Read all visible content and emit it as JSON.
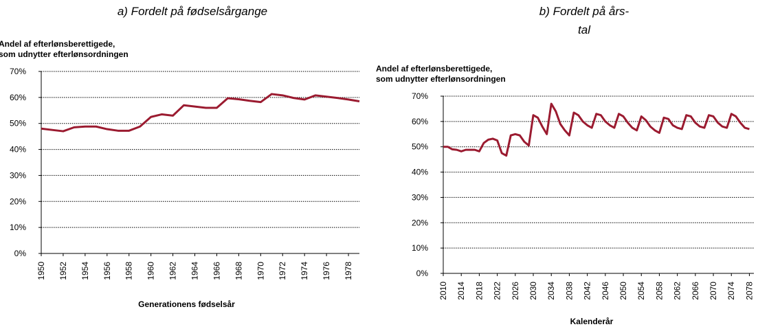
{
  "chart_data": [
    {
      "type": "line",
      "title": [
        "a) Fordelt på fødselsårgange"
      ],
      "ylabel": [
        "Andel af efterlønsberettigede,",
        "som udnytter efterlønsordningen"
      ],
      "xlabel": "Generationens fødselsår",
      "x": [
        1950,
        1951,
        1952,
        1953,
        1954,
        1955,
        1956,
        1957,
        1958,
        1959,
        1960,
        1961,
        1962,
        1963,
        1964,
        1965,
        1966,
        1967,
        1968,
        1969,
        1970,
        1971,
        1972,
        1973,
        1974,
        1975,
        1976,
        1977,
        1978,
        1979
      ],
      "series": [
        {
          "color": "#9b1b30",
          "values": [
            48,
            47.5,
            47,
            48.5,
            48.8,
            48.8,
            47.8,
            47.2,
            47.2,
            48.8,
            52.5,
            53.5,
            53,
            57,
            56.5,
            56,
            56,
            59.7,
            59.3,
            58.7,
            58.2,
            61.3,
            60.8,
            59.8,
            59.2,
            60.8,
            60.3,
            59.8,
            59.2,
            58.5
          ]
        }
      ],
      "xlim": [
        1950,
        1979
      ],
      "xticks": [
        1950,
        1952,
        1954,
        1956,
        1958,
        1960,
        1962,
        1964,
        1966,
        1968,
        1970,
        1972,
        1974,
        1976,
        1978
      ],
      "ylim": [
        0,
        70
      ],
      "yticks": [
        {
          "value": 0,
          "label": "0%"
        },
        {
          "value": 10,
          "label": "10%"
        },
        {
          "value": 20,
          "label": "20%"
        },
        {
          "value": 30,
          "label": "30%"
        },
        {
          "value": 40,
          "label": "40%"
        },
        {
          "value": 50,
          "label": "50%"
        },
        {
          "value": 60,
          "label": "60%"
        },
        {
          "value": 70,
          "label": "70%"
        }
      ],
      "grid": true
    },
    {
      "type": "line",
      "title": [
        "b) Fordelt på års-",
        "tal"
      ],
      "ylabel": [
        "Andel af efterlønsberettigede,",
        "som udnytter efterlønsordningen"
      ],
      "xlabel": "Kalenderår",
      "x": [
        2010,
        2011,
        2012,
        2013,
        2014,
        2015,
        2016,
        2017,
        2018,
        2019,
        2020,
        2021,
        2022,
        2023,
        2024,
        2025,
        2026,
        2027,
        2028,
        2029,
        2030,
        2031,
        2032,
        2033,
        2034,
        2035,
        2036,
        2037,
        2038,
        2039,
        2040,
        2041,
        2042,
        2043,
        2044,
        2045,
        2046,
        2047,
        2048,
        2049,
        2050,
        2051,
        2052,
        2053,
        2054,
        2055,
        2056,
        2057,
        2058,
        2059,
        2060,
        2061,
        2062,
        2063,
        2064,
        2065,
        2066,
        2067,
        2068,
        2069,
        2070,
        2071,
        2072,
        2073,
        2074,
        2075,
        2076,
        2077,
        2078
      ],
      "series": [
        {
          "color": "#9b1b30",
          "values": [
            50,
            50,
            49,
            48.8,
            48.2,
            48.8,
            48.8,
            48.8,
            48.2,
            51.5,
            52.8,
            53.2,
            52.5,
            47.5,
            46.5,
            54.5,
            55,
            54.5,
            52,
            50.5,
            62.5,
            61.5,
            58,
            55,
            67,
            64,
            59,
            56.5,
            54.5,
            63.5,
            62.5,
            60,
            58.5,
            57.5,
            63,
            62.5,
            60,
            58.5,
            57.5,
            63,
            62,
            59.5,
            57.5,
            56.5,
            62,
            60.5,
            58,
            56.5,
            55.5,
            61.5,
            61,
            58.5,
            57.5,
            57,
            62.5,
            62,
            59.5,
            58,
            57.5,
            62.5,
            62,
            59.5,
            58,
            57.5,
            63,
            62,
            59.5,
            57.5,
            57
          ]
        }
      ],
      "xlim": [
        2010,
        2079
      ],
      "xticks": [
        2010,
        2014,
        2018,
        2022,
        2026,
        2030,
        2034,
        2038,
        2042,
        2046,
        2050,
        2054,
        2058,
        2062,
        2066,
        2070,
        2074,
        2078
      ],
      "ylim": [
        0,
        70
      ],
      "yticks": [
        {
          "value": 0,
          "label": "0%"
        },
        {
          "value": 10,
          "label": "10%"
        },
        {
          "value": 20,
          "label": "20%"
        },
        {
          "value": 30,
          "label": "30%"
        },
        {
          "value": 40,
          "label": "40%"
        },
        {
          "value": 50,
          "label": "50%"
        },
        {
          "value": 60,
          "label": "60%"
        },
        {
          "value": 70,
          "label": "70%"
        }
      ],
      "grid": true
    }
  ]
}
